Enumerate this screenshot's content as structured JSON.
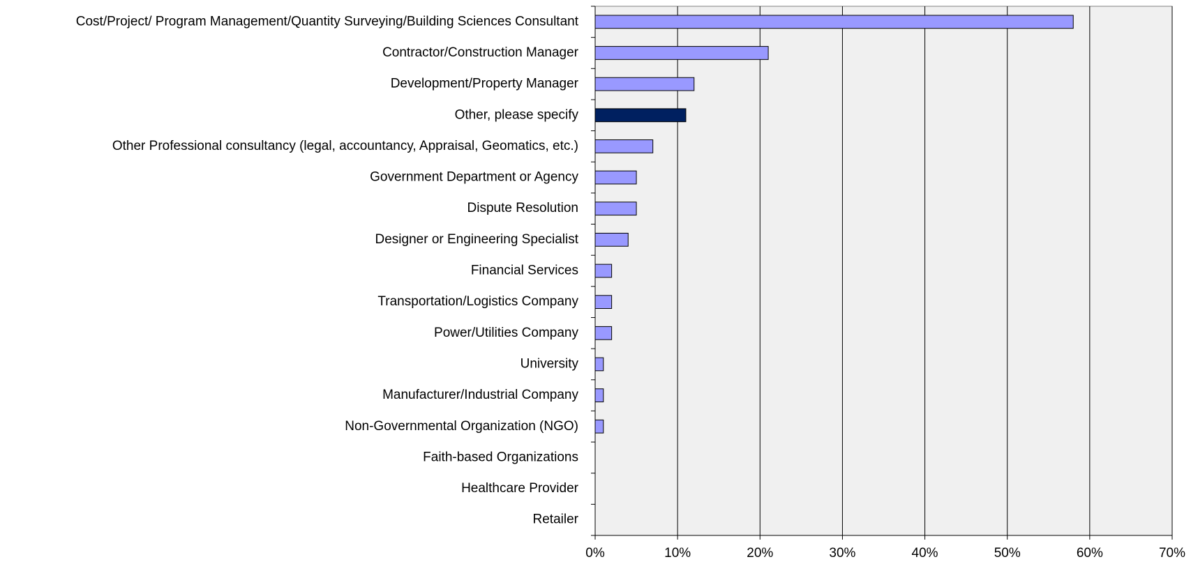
{
  "chart_data": {
    "type": "barh",
    "categories": [
      "Cost/Project/ Program Management/Quantity Surveying/Building Sciences Consultant",
      "Contractor/Construction Manager",
      "Development/Property Manager",
      "Other, please specify",
      "Other Professional consultancy (legal, accountancy, Appraisal, Geomatics, etc.)",
      "Government Department or Agency",
      "Dispute Resolution",
      "Designer or Engineering Specialist",
      "Financial Services",
      "Transportation/Logistics Company",
      "Power/Utilities Company",
      "University",
      "Manufacturer/Industrial Company",
      "Non-Governmental Organization (NGO)",
      "Faith-based Organizations",
      "Healthcare Provider",
      "Retailer"
    ],
    "values": [
      58,
      21,
      12,
      11,
      7,
      5,
      5,
      4,
      2,
      2,
      2,
      1,
      1,
      1,
      0,
      0,
      0
    ],
    "colors": [
      "#9999ff",
      "#9999ff",
      "#9999ff",
      "#002060",
      "#9999ff",
      "#9999ff",
      "#9999ff",
      "#9999ff",
      "#9999ff",
      "#9999ff",
      "#9999ff",
      "#9999ff",
      "#9999ff",
      "#9999ff",
      "#9999ff",
      "#9999ff",
      "#9999ff"
    ],
    "xlim": [
      0,
      70
    ],
    "xticks": [
      {
        "value": 0,
        "label": "0%"
      },
      {
        "value": 10,
        "label": "10%"
      },
      {
        "value": 20,
        "label": "20%"
      },
      {
        "value": 30,
        "label": "30%"
      },
      {
        "value": 40,
        "label": "40%"
      },
      {
        "value": 50,
        "label": "50%"
      },
      {
        "value": 60,
        "label": "60%"
      },
      {
        "value": 70,
        "label": "70%"
      }
    ],
    "grid": true,
    "plot_background": "#f0f0f0"
  }
}
